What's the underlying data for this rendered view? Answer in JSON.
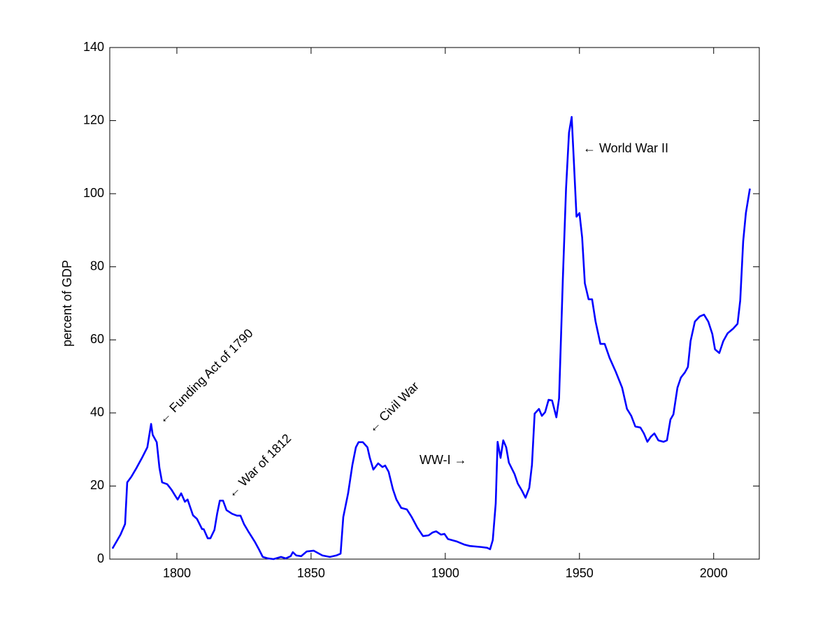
{
  "chart_data": {
    "type": "line",
    "y_label": "percent of GDP",
    "x": [
      1776,
      1779,
      1780.7,
      1781.5,
      1783,
      1785,
      1787,
      1789,
      1790.4,
      1791,
      1792.5,
      1793.5,
      1794.5,
      1796.4,
      1798,
      1799.5,
      1800.3,
      1801.6,
      1803,
      1804,
      1806,
      1807.5,
      1809.4,
      1810,
      1811.5,
      1812.5,
      1814,
      1815,
      1816,
      1817.2,
      1818.5,
      1820.6,
      1822.4,
      1823.7,
      1825,
      1826.6,
      1829,
      1830.7,
      1832,
      1833.9,
      1836,
      1838.8,
      1840.6,
      1842.4,
      1843.2,
      1844.5,
      1846.3,
      1848.4,
      1851,
      1854.2,
      1857,
      1859.4,
      1861,
      1862,
      1863.8,
      1865.4,
      1866.7,
      1867.7,
      1869.3,
      1871,
      1871.9,
      1873.2,
      1875,
      1876.6,
      1877.6,
      1878.9,
      1880.5,
      1881.8,
      1883.6,
      1885.7,
      1887.5,
      1889.6,
      1891.7,
      1893.8,
      1895.3,
      1896.6,
      1898.4,
      1899.7,
      1901,
      1904.4,
      1907,
      1909.1,
      1913.5,
      1915.6,
      1916.7,
      1917.7,
      1918.8,
      1919.5,
      1920.6,
      1921.6,
      1922.7,
      1923.7,
      1925.8,
      1927,
      1928.6,
      1929.9,
      1931.3,
      1932.3,
      1933.3,
      1934.9,
      1936,
      1937.2,
      1938.5,
      1939.8,
      1941.4,
      1942.4,
      1943.8,
      1945,
      1946.1,
      1947.1,
      1947.9,
      1948.9,
      1950,
      1951,
      1952,
      1953.4,
      1954.7,
      1956,
      1957.8,
      1959.4,
      1961.2,
      1963.5,
      1965.9,
      1967.7,
      1969.3,
      1970.8,
      1972.7,
      1974,
      1975.3,
      1976.6,
      1977.9,
      1979.4,
      1981.3,
      1982.6,
      1983.9,
      1985,
      1986.5,
      1987.8,
      1989.3,
      1990.4,
      1991.4,
      1993,
      1994.8,
      1996.4,
      1998,
      1999.5,
      2000.5,
      2002.1,
      2003.6,
      2005.2,
      2007.3,
      2008.9,
      2009.9,
      2011,
      2012,
      2013.5
    ],
    "series": [
      {
        "color": "#0000ff",
        "values": [
          2.9,
          6.7,
          9.6,
          21,
          22.5,
          25,
          27.7,
          30.6,
          37,
          34,
          32,
          25,
          21,
          20.5,
          19,
          17.2,
          16.3,
          18,
          15.7,
          16.3,
          12,
          11,
          8.2,
          8.2,
          5.7,
          5.7,
          8,
          12.4,
          16,
          16,
          13.4,
          12.4,
          11.9,
          11.9,
          9.6,
          7.6,
          4.8,
          2.5,
          0.6,
          0.2,
          0,
          0.6,
          0.2,
          0.8,
          1.9,
          1,
          0.8,
          2.1,
          2.3,
          1,
          0.6,
          1,
          1.5,
          11.5,
          18,
          25.8,
          30.6,
          32,
          32,
          30.6,
          27.7,
          24.5,
          26.2,
          25.2,
          25.6,
          23.9,
          19.1,
          16.3,
          14,
          13.6,
          11.5,
          8.6,
          6.3,
          6.5,
          7.3,
          7.6,
          6.7,
          6.9,
          5.5,
          4.8,
          4,
          3.6,
          3.3,
          3.1,
          2.7,
          5.2,
          15.3,
          32.1,
          27.7,
          32.5,
          30.6,
          26.4,
          23.3,
          20.7,
          18.7,
          16.8,
          19.5,
          25.8,
          39.8,
          41.1,
          39.2,
          40.2,
          43.6,
          43.4,
          38.8,
          44,
          76.5,
          101.4,
          116.7,
          121,
          109,
          93.7,
          94.7,
          88,
          75.5,
          71.1,
          71.1,
          65,
          58.9,
          58.9,
          55.1,
          51.3,
          46.9,
          41.1,
          39.2,
          36.3,
          36,
          34.4,
          32.1,
          33.5,
          34.4,
          32.5,
          32.1,
          32.5,
          38.2,
          39.6,
          46.9,
          49.7,
          51.1,
          52.6,
          59.7,
          65,
          66.4,
          66.9,
          65,
          61.6,
          57.4,
          56.4,
          59.7,
          61.8,
          63.1,
          64.4,
          70.8,
          87,
          94.7,
          101.4
        ]
      }
    ],
    "xlim": [
      1775,
      2017
    ],
    "ylim": [
      0,
      140
    ],
    "xticks": [
      1800,
      1850,
      1900,
      1950,
      2000
    ],
    "yticks": [
      0,
      20,
      40,
      60,
      80,
      100,
      120,
      140
    ],
    "grid": false,
    "annotations": [
      "← Funding Act of 1790",
      "← War of 1812",
      "← Civil War",
      "WW-I →",
      "← World War II"
    ]
  }
}
